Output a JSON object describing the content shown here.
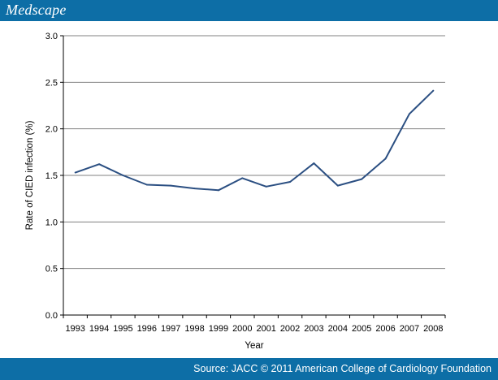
{
  "header": {
    "brand": "Medscape"
  },
  "footer": {
    "source": "Source: JACC © 2011 American College of Cardiology Foundation"
  },
  "colors": {
    "banner": "#0d6ea6",
    "series": "#2b4f82",
    "grid": "#808080"
  },
  "chart_data": {
    "type": "line",
    "title": "",
    "xlabel": "Year",
    "ylabel": "Rate of CIED infection (%)",
    "ylim": [
      0,
      3.0
    ],
    "yticks": [
      "0.0",
      "0.5",
      "1.0",
      "1.5",
      "2.0",
      "2.5",
      "3.0"
    ],
    "grid": "horizontal",
    "legend": "none",
    "categories": [
      "1993",
      "1994",
      "1995",
      "1996",
      "1997",
      "1998",
      "1999",
      "2000",
      "2001",
      "2002",
      "2003",
      "2004",
      "2005",
      "2006",
      "2007",
      "2008"
    ],
    "series": [
      {
        "values": [
          1.53,
          1.62,
          1.5,
          1.4,
          1.39,
          1.36,
          1.34,
          1.47,
          1.38,
          1.43,
          1.63,
          1.39,
          1.46,
          1.68,
          2.16,
          2.41
        ]
      }
    ]
  }
}
